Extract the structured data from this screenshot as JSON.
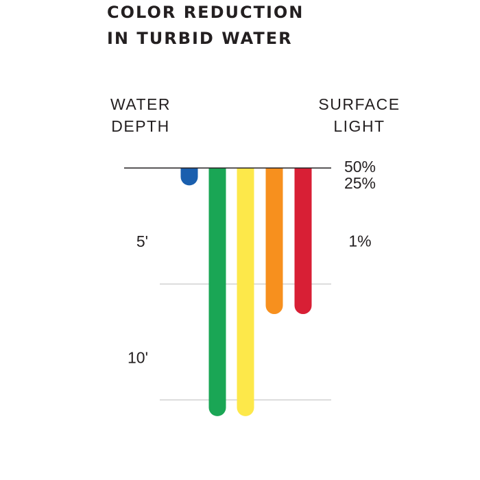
{
  "chart_data": {
    "type": "hanging-bar",
    "title": [
      "COLOR REDUCTION",
      "IN TURBID WATER"
    ],
    "y_label": [
      "WATER",
      "DEPTH"
    ],
    "y2_label": [
      "SURFACE",
      "LIGHT"
    ],
    "categories": [
      null,
      null,
      null,
      null,
      null
    ],
    "values": [
      0.75,
      10.7,
      10.7,
      6.3,
      6.3
    ],
    "colors": [
      "#1a5fae",
      "#1aa655",
      "#fde84a",
      "#f7901e",
      "#d81f35"
    ],
    "ylim": [
      0,
      11
    ],
    "yticks": [
      {
        "value": 5,
        "label": "5'"
      },
      {
        "value": 10,
        "label": "10'"
      }
    ],
    "grid": true,
    "surface_light": {
      "values": [
        50,
        25,
        1
      ],
      "value_labels": [
        "50%",
        "25%",
        "1%"
      ],
      "depths": [
        0,
        0.7,
        3.2
      ]
    }
  }
}
